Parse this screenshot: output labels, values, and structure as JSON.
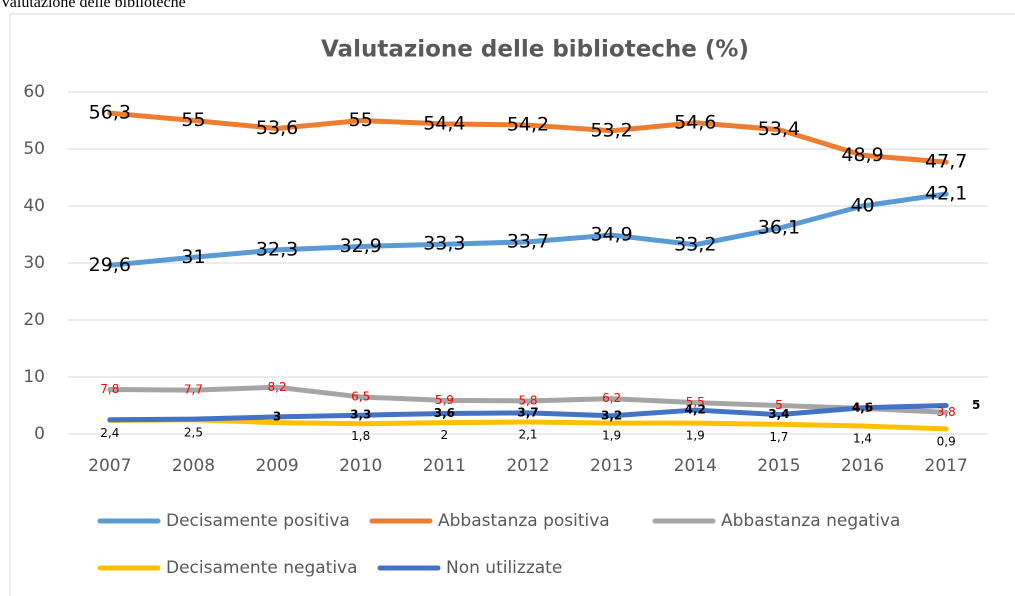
{
  "caption": "Valutazione delle biblioteche",
  "chart_data": {
    "type": "line",
    "title": "Valutazione delle biblioteche (%)",
    "categories": [
      "2007",
      "2008",
      "2009",
      "2010",
      "2011",
      "2012",
      "2013",
      "2014",
      "2015",
      "2016",
      "2017"
    ],
    "ylim": [
      0,
      60
    ],
    "yticks": [
      0,
      10,
      20,
      30,
      40,
      50,
      60
    ],
    "grid": true,
    "series": [
      {
        "name": "Decisamente positiva",
        "color": "#5b9bd5",
        "label_color": "#000000",
        "values": [
          29.6,
          31,
          32.3,
          32.9,
          33.3,
          33.7,
          34.9,
          33.2,
          36.1,
          40,
          42.1
        ],
        "value_labels": [
          "29,6",
          "31",
          "32,3",
          "32,9",
          "33,3",
          "33,7",
          "34,9",
          "33,2",
          "36,1",
          "40",
          "42,1"
        ]
      },
      {
        "name": "Abbastanza positiva",
        "color": "#ed7d31",
        "label_color": "#000000",
        "values": [
          56.3,
          55,
          53.6,
          55,
          54.4,
          54.2,
          53.2,
          54.6,
          53.4,
          48.9,
          47.7
        ],
        "value_labels": [
          "56,3",
          "55",
          "53,6",
          "55",
          "54,4",
          "54,2",
          "53,2",
          "54,6",
          "53,4",
          "48,9",
          "47,7"
        ]
      },
      {
        "name": "Abbastanza negativa",
        "color": "#a5a5a5",
        "label_color": "#ff0000",
        "values": [
          7.8,
          7.7,
          8.2,
          6.5,
          5.9,
          5.8,
          6.2,
          5.5,
          5,
          4.5,
          3.8
        ],
        "value_labels": [
          "7,8",
          "7,7",
          "8,2",
          "6,5",
          "5,9",
          "5,8",
          "6,2",
          "5,5",
          "5",
          "4,5",
          "3,8"
        ]
      },
      {
        "name": "Decisamente negativa",
        "color": "#ffc000",
        "label_color": "#000000",
        "values": [
          2.4,
          2.5,
          2,
          1.8,
          2,
          2.1,
          1.9,
          1.9,
          1.7,
          1.4,
          0.9
        ],
        "value_labels": [
          "2,4",
          "2,5",
          null,
          "1,8",
          "2",
          "2,1",
          "1,9",
          "1,9",
          "1,7",
          "1,4",
          "0,9"
        ]
      },
      {
        "name": "Non utilizzate",
        "color": "#4472c4",
        "label_color": "#000000",
        "values": [
          2.5,
          2.6,
          3,
          3.3,
          3.6,
          3.7,
          3.2,
          4.2,
          3.4,
          4.6,
          5
        ],
        "value_labels": [
          null,
          null,
          "3",
          "3,3",
          "3,6",
          "3,7",
          "3,2",
          "4,2",
          "3,4",
          "4,6",
          "5"
        ]
      }
    ]
  }
}
